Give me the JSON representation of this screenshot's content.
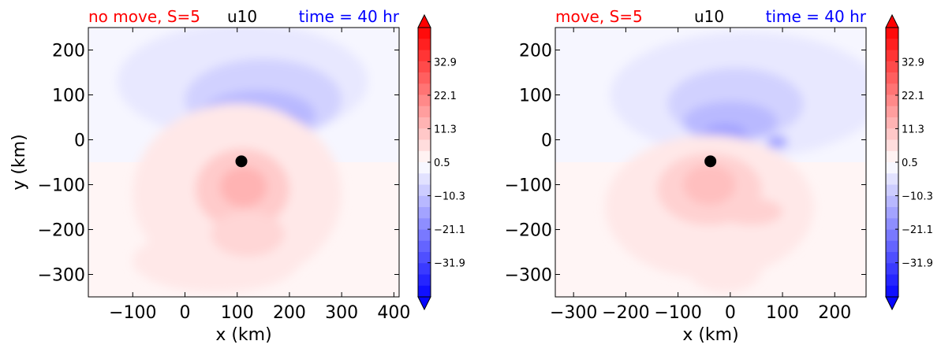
{
  "colors": {
    "negative": "#0000ff",
    "positive": "#ff0000",
    "neutral": "#ffffff",
    "title_left": "#ff0000",
    "title_center": "#000000",
    "title_right": "#0000ff"
  },
  "chart_data": [
    {
      "type": "contourf",
      "title_left": "no move, S=5",
      "title_center": "u10",
      "title_right": "time = 40 hr",
      "xlabel": "x (km)",
      "ylabel": "y (km)",
      "xlim": [
        -185,
        410
      ],
      "ylim": [
        -350,
        250
      ],
      "xticks": [
        -100,
        0,
        100,
        200,
        300,
        400
      ],
      "xtick_labels": [
        "−100",
        "0",
        "100",
        "200",
        "300",
        "400"
      ],
      "yticks": [
        200,
        100,
        0,
        -100,
        -200,
        -300
      ],
      "ytick_labels": [
        "200",
        "100",
        "0",
        "−100",
        "−200",
        "−300"
      ],
      "center_marker": {
        "x": 108,
        "y": -48
      },
      "blobs": [
        {
          "x": 110,
          "y": 130,
          "rx": 240,
          "ry": 130,
          "v": -4
        },
        {
          "x": 150,
          "y": 90,
          "rx": 150,
          "ry": 90,
          "v": -8
        },
        {
          "x": 140,
          "y": 55,
          "rx": 110,
          "ry": 55,
          "v": -12
        },
        {
          "x": 110,
          "y": 20,
          "rx": 60,
          "ry": 25,
          "v": -20
        },
        {
          "x": 180,
          "y": 40,
          "rx": 45,
          "ry": 22,
          "v": -16
        },
        {
          "x": 100,
          "y": -120,
          "rx": 200,
          "ry": 200,
          "v": 4
        },
        {
          "x": 110,
          "y": -110,
          "rx": 90,
          "ry": 90,
          "v": 9
        },
        {
          "x": 112,
          "y": -105,
          "rx": 45,
          "ry": 45,
          "v": 13
        },
        {
          "x": 60,
          "y": -270,
          "rx": 160,
          "ry": 70,
          "v": 4
        },
        {
          "x": 120,
          "y": -210,
          "rx": 70,
          "ry": 50,
          "v": 7
        }
      ],
      "colorbar": {
        "levels_min": -42.9,
        "levels_max": 43.9,
        "extend": "both",
        "tick_values": [
          32.9,
          22.1,
          11.3,
          0.5,
          -10.3,
          -21.1,
          -31.9
        ],
        "tick_labels": [
          "32.9",
          "22.1",
          "11.3",
          "0.5",
          "−10.3",
          "−21.1",
          "−31.9"
        ]
      }
    },
    {
      "type": "contourf",
      "title_left": "move, S=5",
      "title_center": "u10",
      "title_right": "time = 40 hr",
      "xlabel": "x (km)",
      "ylabel": "",
      "xlim": [
        -335,
        260
      ],
      "ylim": [
        -350,
        250
      ],
      "xticks": [
        -300,
        -200,
        -100,
        0,
        100,
        200
      ],
      "xtick_labels": [
        "−300",
        "−200",
        "−100",
        "0",
        "100",
        "200"
      ],
      "yticks": [
        200,
        100,
        0,
        -100,
        -200,
        -300
      ],
      "ytick_labels": [
        "200",
        "100",
        "0",
        "−100",
        "−200",
        "−300"
      ],
      "center_marker": {
        "x": -38,
        "y": -48
      },
      "blobs": [
        {
          "x": 30,
          "y": 100,
          "rx": 260,
          "ry": 140,
          "v": -4
        },
        {
          "x": 10,
          "y": 80,
          "rx": 130,
          "ry": 80,
          "v": -8
        },
        {
          "x": 0,
          "y": 40,
          "rx": 90,
          "ry": 45,
          "v": -12
        },
        {
          "x": -10,
          "y": 15,
          "rx": 40,
          "ry": 20,
          "v": -16
        },
        {
          "x": 90,
          "y": -5,
          "rx": 20,
          "ry": 14,
          "v": -16
        },
        {
          "x": -40,
          "y": -150,
          "rx": 200,
          "ry": 160,
          "v": 4
        },
        {
          "x": -40,
          "y": -110,
          "rx": 100,
          "ry": 80,
          "v": 8
        },
        {
          "x": -40,
          "y": -100,
          "rx": 50,
          "ry": 45,
          "v": 11
        },
        {
          "x": 40,
          "y": -160,
          "rx": 60,
          "ry": 30,
          "v": 8
        },
        {
          "x": -10,
          "y": -290,
          "rx": 70,
          "ry": 50,
          "v": 4
        }
      ],
      "colorbar": {
        "levels_min": -42.9,
        "levels_max": 43.9,
        "extend": "both",
        "tick_values": [
          32.9,
          22.1,
          11.3,
          0.5,
          -10.3,
          -21.1,
          -31.9
        ],
        "tick_labels": [
          "32.9",
          "22.1",
          "11.3",
          "0.5",
          "−10.3",
          "−21.1",
          "−31.9"
        ]
      }
    }
  ]
}
